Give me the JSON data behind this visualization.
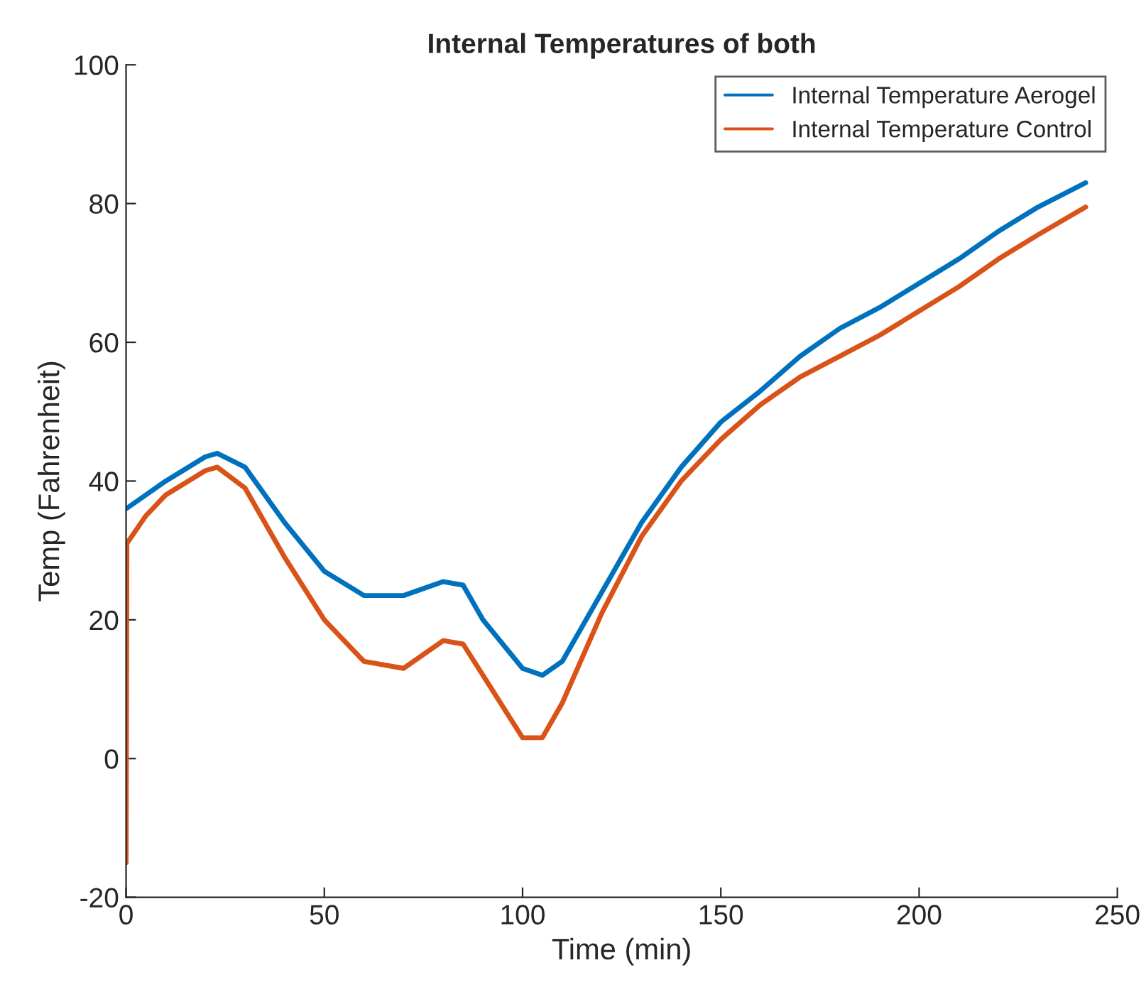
{
  "chart_data": {
    "type": "line",
    "title": "Internal Temperatures of both",
    "xlabel": "Time (min)",
    "ylabel": "Temp (Fahrenheit)",
    "xlim": [
      0,
      250
    ],
    "xticks": [
      0,
      50,
      100,
      150,
      200,
      250
    ],
    "ylim": [
      -20,
      100
    ],
    "yticks": [
      -20,
      0,
      20,
      40,
      60,
      80,
      100
    ],
    "grid": false,
    "legend": "top right",
    "line_style": "solid",
    "marker": "none",
    "series": [
      {
        "name": "Internal Temperature Aerogel",
        "color": "#0072bd",
        "x": [
          0,
          10,
          20,
          23,
          30,
          40,
          50,
          60,
          70,
          80,
          85,
          90,
          100,
          105,
          110,
          120,
          130,
          140,
          150,
          160,
          170,
          180,
          190,
          200,
          210,
          220,
          230,
          242
        ],
        "values": [
          36,
          40,
          43.5,
          44,
          42,
          34,
          27,
          23.5,
          23.5,
          25.5,
          25,
          20,
          13,
          12,
          14,
          24,
          34,
          42,
          48.5,
          53,
          58,
          62,
          65,
          68.5,
          72,
          76,
          79.5,
          83
        ]
      },
      {
        "name": "Internal Temperature Control",
        "color": "#d95319",
        "x": [
          0,
          0.2,
          5,
          10,
          20,
          23,
          30,
          40,
          50,
          60,
          70,
          80,
          85,
          90,
          100,
          105,
          110,
          120,
          130,
          140,
          150,
          160,
          170,
          180,
          190,
          200,
          210,
          220,
          230,
          242
        ],
        "values": [
          -15,
          31,
          35,
          38,
          41.5,
          42,
          39,
          29,
          20,
          14,
          13,
          17,
          16.5,
          12,
          3,
          3,
          8,
          21,
          32,
          40,
          46,
          51,
          55,
          58,
          61,
          64.5,
          68,
          72,
          75.5,
          79.5
        ]
      }
    ]
  }
}
